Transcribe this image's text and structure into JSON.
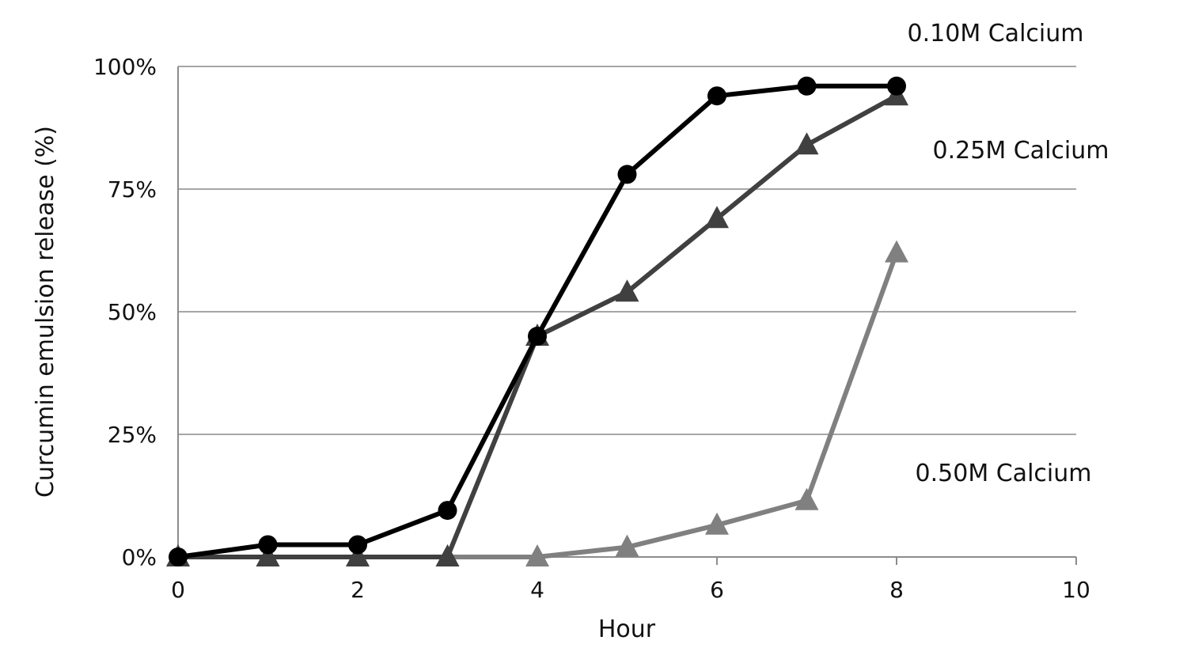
{
  "chart_data": {
    "type": "line",
    "xlabel": "Hour",
    "ylabel": "Curcumin emulsion release (%)",
    "xlim": [
      0,
      10
    ],
    "ylim": [
      0,
      100
    ],
    "x_ticks": [
      "0",
      "2",
      "4",
      "6",
      "8",
      "10"
    ],
    "y_ticks": [
      "0%",
      "25%",
      "50%",
      "75%",
      "100%"
    ],
    "grid": "horizontal",
    "x": [
      0,
      1,
      2,
      3,
      4,
      5,
      6,
      7,
      8
    ],
    "series": [
      {
        "name": "0.10M Calcium",
        "marker": "circle",
        "color": "#000000",
        "values": [
          0,
          2.5,
          2.5,
          9.5,
          45,
          78,
          94,
          96,
          96
        ]
      },
      {
        "name": "0.25M Calcium",
        "marker": "triangle",
        "color": "#404040",
        "values": [
          0,
          0,
          0,
          0,
          45,
          54,
          69,
          84,
          94
        ]
      },
      {
        "name": "0.50M Calcium",
        "marker": "triangle",
        "color": "#808080",
        "values": [
          0,
          0,
          0,
          0,
          0,
          2,
          6.5,
          11.5,
          62
        ]
      }
    ]
  }
}
